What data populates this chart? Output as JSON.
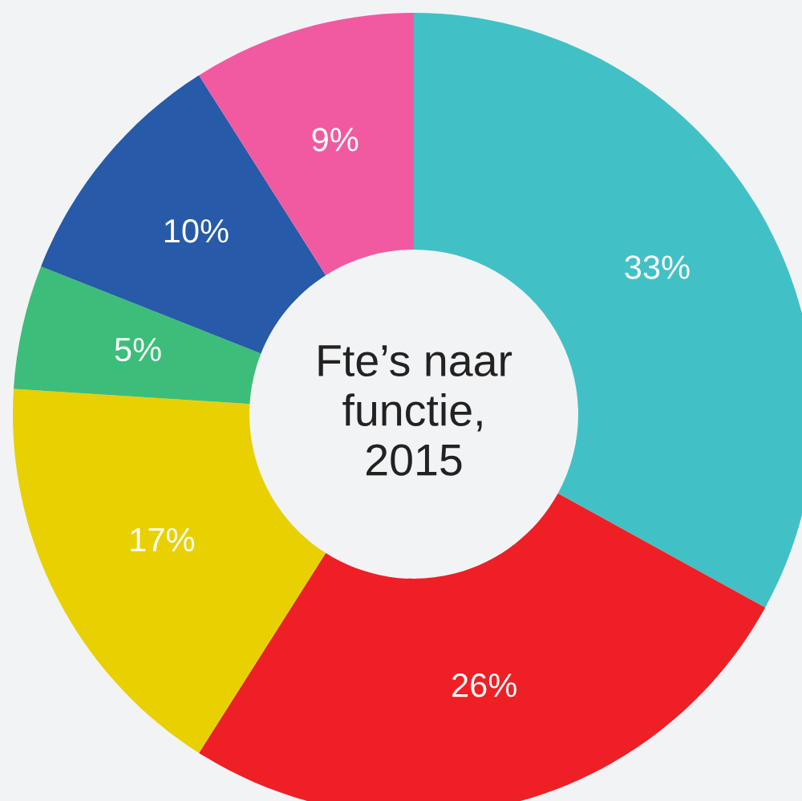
{
  "chart_data": {
    "type": "donut",
    "title": "Fte’s naar\nfunctie,\n2015",
    "categories": [
      null,
      null,
      null,
      null,
      null,
      null
    ],
    "values": [
      33,
      26,
      17,
      5,
      10,
      9
    ],
    "colors": [
      "#41c1c6",
      "#ee1f25",
      "#e9d000",
      "#3dbd7a",
      "#275aa8",
      "#f15aa0"
    ],
    "value_labels": [
      "33%",
      "26%",
      "17%",
      "5%",
      "10%",
      "9%"
    ],
    "legend": false
  }
}
